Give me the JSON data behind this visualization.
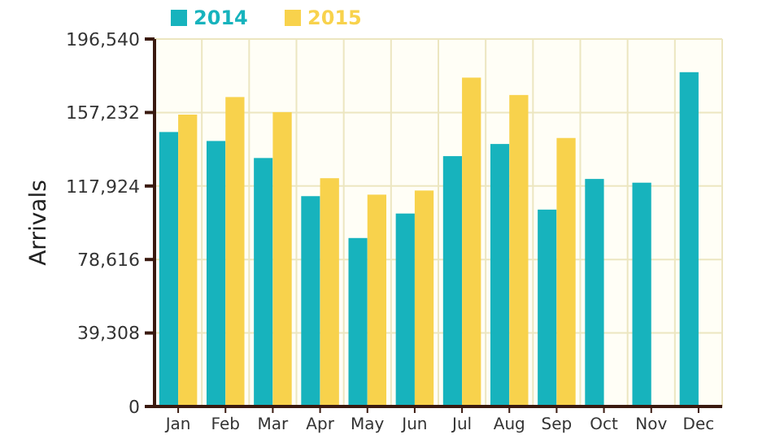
{
  "chart_data": {
    "type": "bar",
    "ylabel": "Arrivals",
    "categories": [
      "Jan",
      "Feb",
      "Mar",
      "Apr",
      "May",
      "Jun",
      "Jul",
      "Aug",
      "Sep",
      "Oct",
      "Nov",
      "Dec"
    ],
    "series": [
      {
        "name": "2014",
        "color": "#17b3bd",
        "values": [
          146800,
          142000,
          132900,
          112500,
          90100,
          103200,
          133900,
          140400,
          105300,
          121700,
          119700,
          178800
        ]
      },
      {
        "name": "2015",
        "color": "#f8d24c",
        "values": [
          156100,
          165500,
          157400,
          122100,
          113300,
          115500,
          175900,
          166600,
          143600,
          null,
          null,
          null
        ]
      }
    ],
    "ylim": [
      0,
      196540
    ],
    "yticks": [
      {
        "value": 0,
        "label": "0"
      },
      {
        "value": 39308,
        "label": "39,308"
      },
      {
        "value": 78616,
        "label": "78,616"
      },
      {
        "value": 117924,
        "label": "117,924"
      },
      {
        "value": 157232,
        "label": "157,232"
      },
      {
        "value": 196540,
        "label": "196,540"
      }
    ],
    "grid": true,
    "legend": "top left"
  }
}
